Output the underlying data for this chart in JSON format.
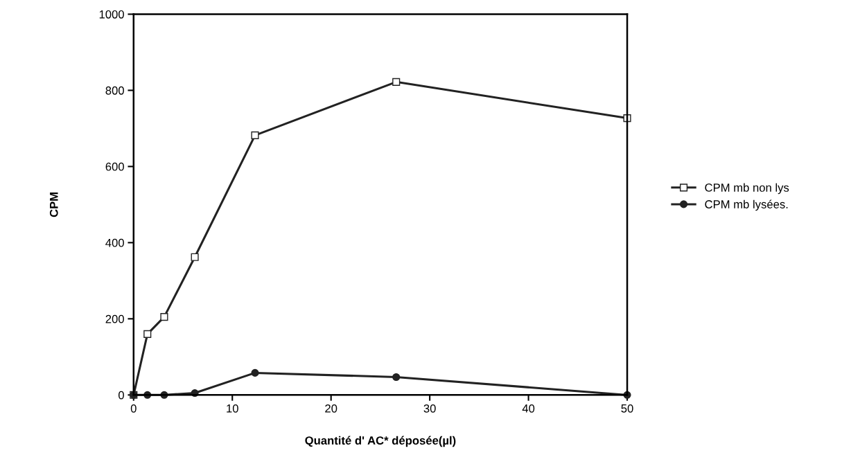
{
  "chart_data": {
    "type": "line",
    "xlabel": "Quantité d' AC* déposée(µl)",
    "ylabel": "CPM",
    "x": [
      0,
      1.4,
      3.1,
      6.2,
      12.3,
      26.6,
      50
    ],
    "series": [
      {
        "name": "CPM mb non lys",
        "color": "#222222",
        "marker": "square",
        "values": [
          0,
          160,
          205,
          362,
          682,
          822,
          727
        ]
      },
      {
        "name": "CPM mb lysées.",
        "color": "#222222",
        "marker": "circle",
        "values": [
          0,
          0,
          0,
          5,
          58,
          47,
          0
        ]
      }
    ],
    "xlim": [
      0,
      50
    ],
    "xticks": [
      0,
      10,
      20,
      30,
      40,
      50
    ],
    "ylim": [
      0,
      1000
    ],
    "yticks": [
      0,
      200,
      400,
      600,
      800,
      1000
    ],
    "grid": false,
    "legend": "right",
    "line_style": "solid"
  }
}
